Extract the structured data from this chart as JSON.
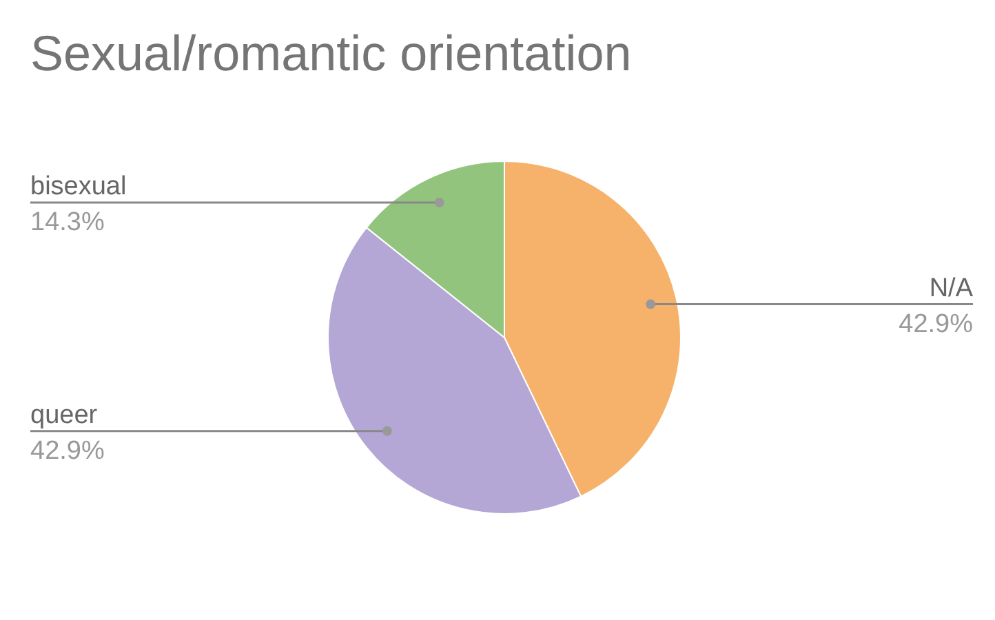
{
  "chart_data": {
    "type": "pie",
    "title": "Sexual/romantic orientation",
    "categories": [
      "N/A",
      "queer",
      "bisexual"
    ],
    "values": [
      42.9,
      42.9,
      14.3
    ],
    "value_labels": [
      "42.9%",
      "42.9%",
      "14.3%"
    ],
    "colors": [
      "#f6b26b",
      "#b4a7d6",
      "#93c47d"
    ],
    "legend": false
  }
}
